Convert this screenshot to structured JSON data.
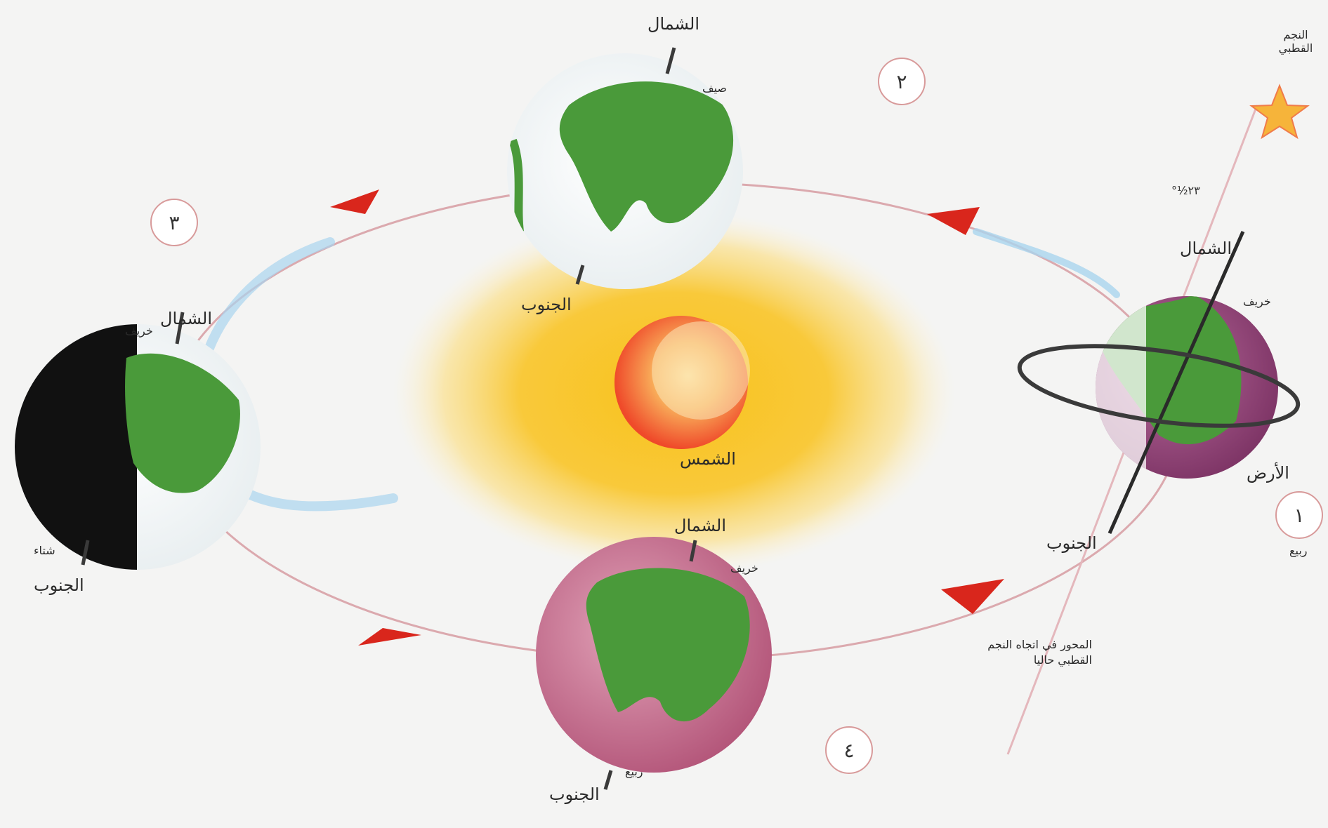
{
  "labels": {
    "north": "الشمال",
    "south": "الجنوب",
    "sun": "الشمس",
    "earth": "الأرض",
    "polaris": "النجم القطبي",
    "angle": "٢٣½°",
    "axis_note": "المحور في اتجاه النجم القطبي حاليا",
    "spring": "ربيع",
    "summer": "صيف",
    "autumn": "خريف",
    "winter": "شتاء"
  },
  "positions": [
    "١",
    "٢",
    "٣",
    "٤"
  ],
  "colors": {
    "sun_glow": "#f7c73a",
    "sun_core": "#ef5a2c",
    "land": "#4a9a3a",
    "orbit_arrow": "#d9261c",
    "night": "#111111",
    "pink_ocean": "#c8708f",
    "shadow_blue": "#a9d4ee"
  }
}
